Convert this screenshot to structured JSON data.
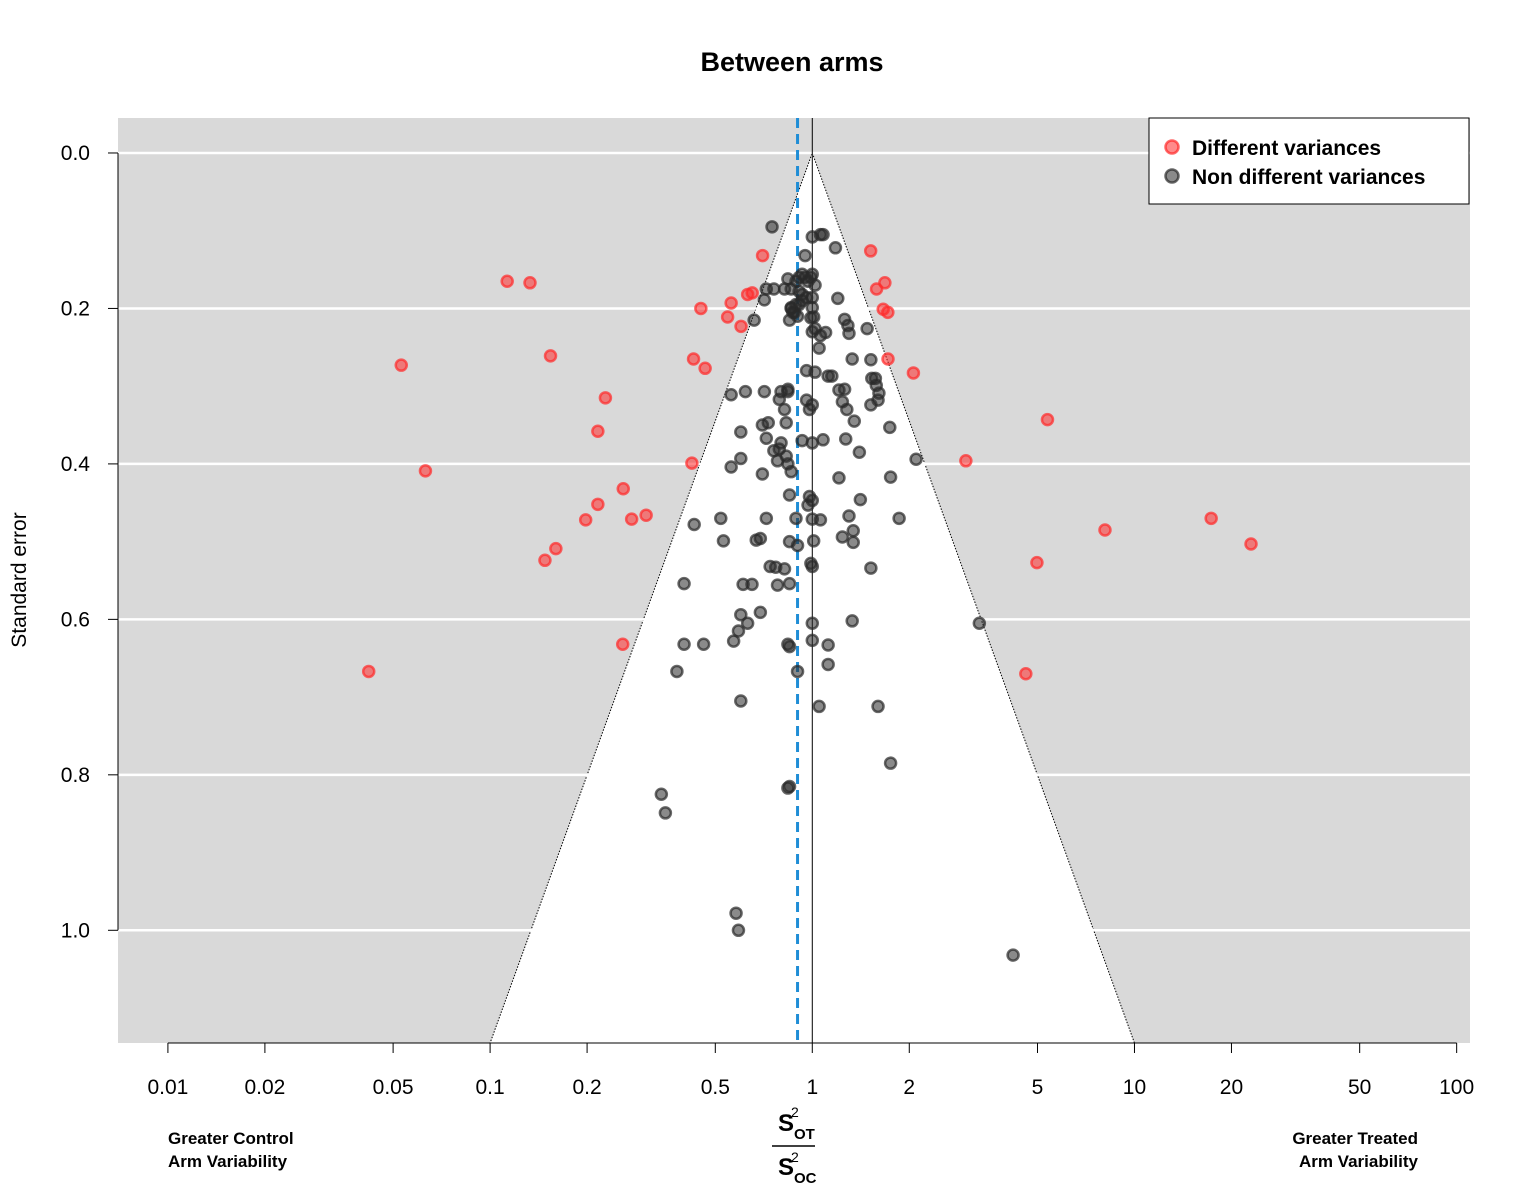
{
  "chart_data": {
    "type": "scatter",
    "title": "Between arms",
    "ylabel": "Standard error",
    "xlabel": {
      "numerator_base": "S",
      "numerator_sub": "OT",
      "numerator_sup": "2",
      "denominator_base": "S",
      "denominator_sub": "OC",
      "denominator_sup": "2"
    },
    "x_scale": "log",
    "xlim": [
      0.007,
      110
    ],
    "ylim": [
      1.145,
      -0.045
    ],
    "x_ticks": [
      {
        "value": 0.01,
        "label": "0.01"
      },
      {
        "value": 0.02,
        "label": "0.02"
      },
      {
        "value": 0.05,
        "label": "0.05"
      },
      {
        "value": 0.1,
        "label": "0.1"
      },
      {
        "value": 0.2,
        "label": "0.2"
      },
      {
        "value": 0.5,
        "label": "0.5"
      },
      {
        "value": 1,
        "label": "1"
      },
      {
        "value": 2,
        "label": "2"
      },
      {
        "value": 5,
        "label": "5"
      },
      {
        "value": 10,
        "label": "10"
      },
      {
        "value": 20,
        "label": "20"
      },
      {
        "value": 50,
        "label": "50"
      },
      {
        "value": 100,
        "label": "100"
      }
    ],
    "y_ticks": [
      {
        "value": 0.0,
        "label": "0.0"
      },
      {
        "value": 0.2,
        "label": "0.2"
      },
      {
        "value": 0.4,
        "label": "0.4"
      },
      {
        "value": 0.6,
        "label": "0.6"
      },
      {
        "value": 0.8,
        "label": "0.8"
      },
      {
        "value": 1.0,
        "label": "1.0"
      }
    ],
    "grid": "horizontal",
    "background_color": "#d9d9d9",
    "reference_line": 1,
    "pooled_estimate": 0.9,
    "funnel": {
      "apex_x": 1,
      "apex_y": 0,
      "base_y": 1.145,
      "base_left_x": 0.1,
      "base_right_x": 10
    },
    "side_labels": {
      "left": [
        "Greater Control",
        "Arm Variability"
      ],
      "right": [
        "Greater Treated",
        "Arm Variability"
      ]
    },
    "legend": {
      "position": "top-right"
    },
    "series": [
      {
        "name": "Different variances",
        "color": "#ff2a2a",
        "points": [
          [
            0.113,
            0.165
          ],
          [
            0.133,
            0.167
          ],
          [
            0.053,
            0.273
          ],
          [
            0.154,
            0.261
          ],
          [
            0.228,
            0.315
          ],
          [
            0.216,
            0.358
          ],
          [
            0.063,
            0.409
          ],
          [
            0.259,
            0.432
          ],
          [
            0.216,
            0.452
          ],
          [
            0.198,
            0.472
          ],
          [
            0.275,
            0.471
          ],
          [
            0.305,
            0.466
          ],
          [
            0.16,
            0.509
          ],
          [
            0.148,
            0.524
          ],
          [
            0.258,
            0.632
          ],
          [
            0.042,
            0.667
          ],
          [
            0.423,
            0.399
          ],
          [
            0.465,
            0.277
          ],
          [
            0.428,
            0.265
          ],
          [
            0.451,
            0.2
          ],
          [
            0.56,
            0.193
          ],
          [
            0.546,
            0.211
          ],
          [
            0.601,
            0.223
          ],
          [
            0.63,
            0.182
          ],
          [
            0.651,
            0.18
          ],
          [
            0.701,
            0.132
          ],
          [
            1.518,
            0.126
          ],
          [
            1.583,
            0.175
          ],
          [
            1.68,
            0.167
          ],
          [
            1.66,
            0.201
          ],
          [
            1.716,
            0.205
          ],
          [
            1.718,
            0.265
          ],
          [
            2.06,
            0.283
          ],
          [
            2.997,
            0.396
          ],
          [
            5.37,
            0.343
          ],
          [
            4.98,
            0.527
          ],
          [
            8.1,
            0.485
          ],
          [
            17.3,
            0.47
          ],
          [
            23.0,
            0.503
          ],
          [
            4.6,
            0.67
          ]
        ]
      },
      {
        "name": "Non different variances",
        "color": "#2a2a2a",
        "points": [
          [
            0.75,
            0.095
          ],
          [
            1.0,
            0.108
          ],
          [
            1.06,
            0.105
          ],
          [
            1.08,
            0.105
          ],
          [
            1.18,
            0.122
          ],
          [
            0.95,
            0.132
          ],
          [
            0.82,
            0.175
          ],
          [
            0.84,
            0.162
          ],
          [
            0.86,
            0.175
          ],
          [
            0.89,
            0.165
          ],
          [
            0.91,
            0.16
          ],
          [
            0.93,
            0.156
          ],
          [
            0.95,
            0.16
          ],
          [
            0.97,
            0.165
          ],
          [
            0.99,
            0.16
          ],
          [
            1.0,
            0.156
          ],
          [
            1.02,
            0.17
          ],
          [
            0.91,
            0.178
          ],
          [
            0.93,
            0.182
          ],
          [
            0.96,
            0.186
          ],
          [
            1.0,
            0.186
          ],
          [
            0.76,
            0.175
          ],
          [
            0.72,
            0.175
          ],
          [
            0.99,
            0.212
          ],
          [
            1.02,
            0.226
          ],
          [
            0.86,
            0.199
          ],
          [
            0.88,
            0.205
          ],
          [
            0.91,
            0.195
          ],
          [
            0.93,
            0.19
          ],
          [
            0.85,
            0.215
          ],
          [
            0.87,
            0.205
          ],
          [
            0.89,
            0.195
          ],
          [
            1.0,
            0.23
          ],
          [
            0.86,
            0.2
          ],
          [
            0.9,
            0.21
          ],
          [
            0.71,
            0.189
          ],
          [
            0.66,
            0.215
          ],
          [
            1.0,
            0.199
          ],
          [
            1.01,
            0.211
          ],
          [
            1.05,
            0.251
          ],
          [
            1.06,
            0.235
          ],
          [
            1.1,
            0.231
          ],
          [
            1.2,
            0.187
          ],
          [
            1.26,
            0.214
          ],
          [
            1.29,
            0.222
          ],
          [
            1.3,
            0.232
          ],
          [
            1.48,
            0.226
          ],
          [
            1.33,
            0.265
          ],
          [
            1.52,
            0.266
          ],
          [
            0.96,
            0.28
          ],
          [
            1.02,
            0.282
          ],
          [
            1.12,
            0.287
          ],
          [
            1.15,
            0.287
          ],
          [
            1.21,
            0.305
          ],
          [
            1.26,
            0.304
          ],
          [
            1.53,
            0.29
          ],
          [
            1.57,
            0.29
          ],
          [
            1.58,
            0.299
          ],
          [
            1.61,
            0.309
          ],
          [
            1.6,
            0.318
          ],
          [
            0.56,
            0.311
          ],
          [
            0.62,
            0.307
          ],
          [
            0.71,
            0.307
          ],
          [
            0.8,
            0.307
          ],
          [
            0.84,
            0.304
          ],
          [
            0.79,
            0.317
          ],
          [
            0.82,
            0.33
          ],
          [
            0.83,
            0.347
          ],
          [
            0.84,
            0.307
          ],
          [
            0.96,
            0.318
          ],
          [
            0.98,
            0.33
          ],
          [
            1.0,
            0.324
          ],
          [
            1.24,
            0.32
          ],
          [
            1.28,
            0.33
          ],
          [
            1.35,
            0.345
          ],
          [
            1.52,
            0.324
          ],
          [
            1.74,
            0.353
          ],
          [
            0.6,
            0.359
          ],
          [
            0.7,
            0.35
          ],
          [
            0.73,
            0.347
          ],
          [
            0.72,
            0.367
          ],
          [
            0.8,
            0.373
          ],
          [
            0.83,
            0.39
          ],
          [
            0.79,
            0.381
          ],
          [
            0.78,
            0.396
          ],
          [
            0.76,
            0.383
          ],
          [
            0.93,
            0.37
          ],
          [
            1.0,
            0.373
          ],
          [
            1.08,
            0.369
          ],
          [
            1.27,
            0.368
          ],
          [
            1.4,
            0.385
          ],
          [
            0.6,
            0.393
          ],
          [
            0.56,
            0.404
          ],
          [
            0.7,
            0.413
          ],
          [
            0.84,
            0.4
          ],
          [
            0.86,
            0.41
          ],
          [
            0.85,
            0.44
          ],
          [
            0.98,
            0.442
          ],
          [
            0.97,
            0.453
          ],
          [
            1.0,
            0.447
          ],
          [
            1.21,
            0.418
          ],
          [
            1.41,
            0.446
          ],
          [
            1.75,
            0.417
          ],
          [
            2.1,
            0.394
          ],
          [
            0.43,
            0.478
          ],
          [
            0.52,
            0.47
          ],
          [
            0.53,
            0.499
          ],
          [
            0.67,
            0.498
          ],
          [
            0.69,
            0.496
          ],
          [
            0.72,
            0.47
          ],
          [
            0.89,
            0.47
          ],
          [
            1.0,
            0.471
          ],
          [
            1.06,
            0.472
          ],
          [
            1.24,
            0.494
          ],
          [
            1.3,
            0.467
          ],
          [
            1.34,
            0.486
          ],
          [
            1.34,
            0.501
          ],
          [
            1.86,
            0.47
          ],
          [
            0.9,
            0.505
          ],
          [
            0.85,
            0.5
          ],
          [
            0.99,
            0.528
          ],
          [
            1.0,
            0.532
          ],
          [
            1.01,
            0.499
          ],
          [
            0.74,
            0.532
          ],
          [
            0.77,
            0.533
          ],
          [
            0.82,
            0.535
          ],
          [
            0.85,
            0.554
          ],
          [
            0.61,
            0.555
          ],
          [
            0.65,
            0.555
          ],
          [
            0.78,
            0.556
          ],
          [
            0.69,
            0.591
          ],
          [
            0.6,
            0.594
          ],
          [
            1.52,
            0.534
          ],
          [
            0.4,
            0.554
          ],
          [
            0.63,
            0.605
          ],
          [
            0.57,
            0.628
          ],
          [
            0.59,
            0.615
          ],
          [
            0.4,
            0.632
          ],
          [
            0.46,
            0.632
          ],
          [
            0.84,
            0.632
          ],
          [
            0.85,
            0.635
          ],
          [
            1.0,
            0.605
          ],
          [
            1.0,
            0.627
          ],
          [
            1.12,
            0.633
          ],
          [
            1.12,
            0.658
          ],
          [
            1.33,
            0.602
          ],
          [
            3.3,
            0.605
          ],
          [
            0.38,
            0.667
          ],
          [
            0.9,
            0.667
          ],
          [
            0.6,
            0.705
          ],
          [
            1.05,
            0.712
          ],
          [
            1.6,
            0.712
          ],
          [
            1.75,
            0.785
          ],
          [
            0.85,
            0.815
          ],
          [
            0.84,
            0.817
          ],
          [
            0.34,
            0.825
          ],
          [
            0.35,
            0.849
          ],
          [
            0.58,
            0.978
          ],
          [
            0.59,
            1.0
          ],
          [
            4.2,
            1.032
          ]
        ]
      }
    ]
  }
}
